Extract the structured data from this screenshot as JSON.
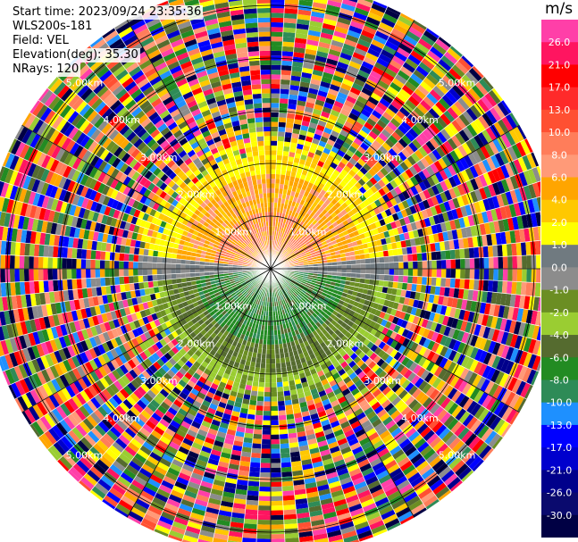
{
  "header": {
    "start_time": "Start time: 2023/09/24 23:35:36",
    "site": "WLS200s-181",
    "field": "Field: VEL",
    "elevation": "Elevation(deg): 35.30",
    "nrays": "NRays: 120"
  },
  "chart_data": {
    "type": "heatmap",
    "projection": "polar-ppi",
    "field": "VEL",
    "elevation_deg": 35.3,
    "nrays": 120,
    "range_ring_labels": [
      "1.00km",
      "2.00km",
      "3.00km",
      "4.00km",
      "5.00km"
    ],
    "range_rings_km": [
      1,
      2,
      3,
      4,
      5
    ],
    "spokes_deg": [
      0,
      30,
      60,
      90,
      120,
      150,
      180,
      210,
      240,
      270,
      300,
      330
    ],
    "colorbar": {
      "unit": "m/s",
      "tick_labels": [
        "26.0",
        "21.0",
        "17.0",
        "13.0",
        "10.0",
        "8.0",
        "6.0",
        "4.0",
        "2.0",
        "1.0",
        "0.0",
        "-1.0",
        "-2.0",
        "-4.0",
        "-6.0",
        "-8.0",
        "-10.0",
        "-13.0",
        "-17.0",
        "-21.0",
        "-26.0",
        "-30.0"
      ],
      "colors": [
        "#ff3fa8",
        "#ff1560",
        "#ff0000",
        "#ff2a2a",
        "#ff5032",
        "#ff7d5a",
        "#ff9a78",
        "#ffa500",
        "#ffc800",
        "#ffff00",
        "#707a80",
        "#8c8c8c",
        "#6b8e23",
        "#9acd32",
        "#556b2f",
        "#228b22",
        "#2e8b57",
        "#1e90ff",
        "#0000ff",
        "#0000cd",
        "#00008b",
        "#0a0a6e",
        "#000044"
      ]
    },
    "regions": [
      {
        "sector": "north",
        "range_km": [
          0,
          2.6
        ],
        "approx_values_ms": [
          4,
          10
        ]
      },
      {
        "sector": "east-west near horizon",
        "approx_values_ms": [
          -1,
          1
        ]
      },
      {
        "sector": "south",
        "range_km": [
          0,
          2.6
        ],
        "approx_values_ms": [
          -8,
          -2
        ]
      },
      {
        "sector": "outer ring",
        "range_km": [
          2.6,
          5.4
        ],
        "note": "noise"
      }
    ]
  }
}
